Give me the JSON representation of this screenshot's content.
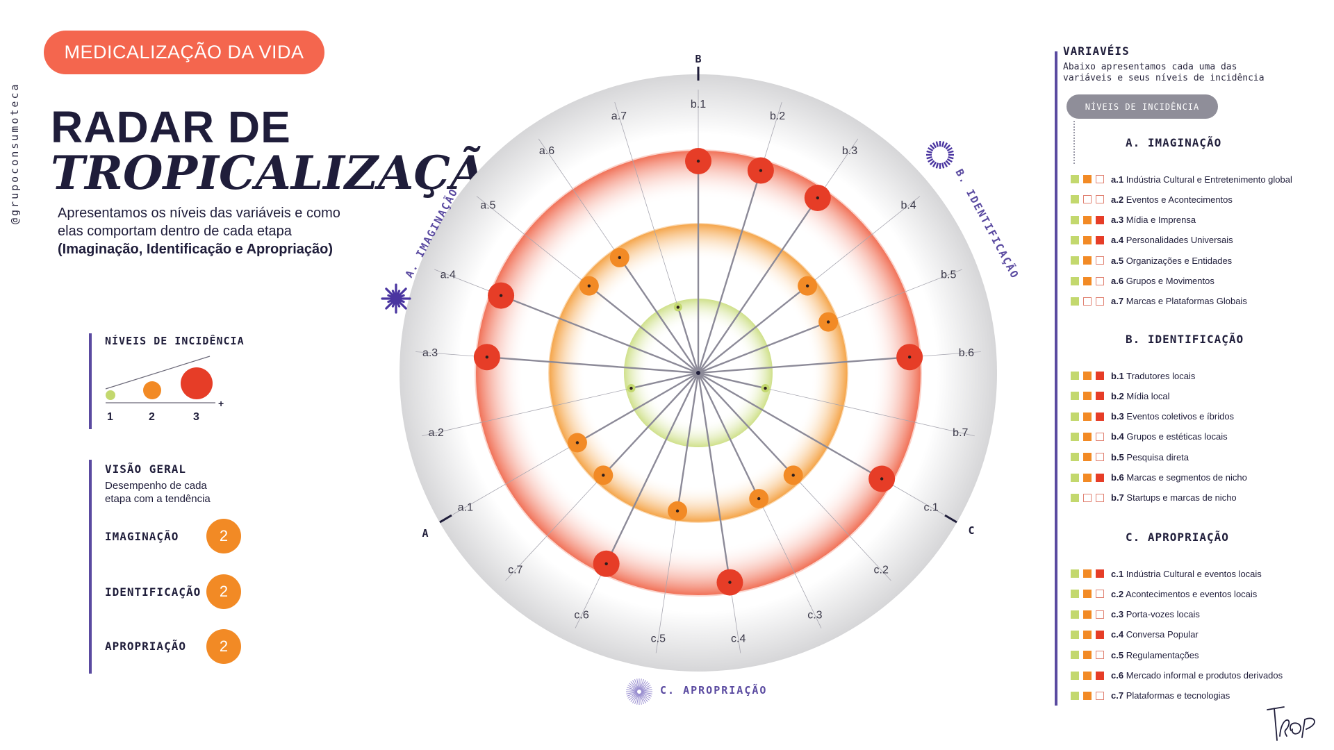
{
  "header": {
    "pill": "MEDICALIZAÇÃO DA VIDA",
    "handle": "@grupoconsumoteca",
    "title_line1": "RADAR DE",
    "title_line2": "TROPICALIZAÇÃO",
    "subtitle_line1": "Apresentamos os níveis das variáveis e como",
    "subtitle_line2": "elas comportam dentro de cada etapa",
    "subtitle_bold": "(Imaginação, Identificação e Apropriação)"
  },
  "levels": {
    "title": "NÍVEIS DE INCIDÊNCIA",
    "labels": [
      "1",
      "2",
      "3"
    ],
    "plus": "+"
  },
  "overview": {
    "title": "VISÃO GERAL",
    "desc_line1": "Desempenho de cada",
    "desc_line2": "etapa com a tendência",
    "items": [
      {
        "label": "IMAGINAÇÃO",
        "value": "2"
      },
      {
        "label": "IDENTIFICAÇÃO",
        "value": "2"
      },
      {
        "label": "APROPRIAÇÃO",
        "value": "2"
      }
    ]
  },
  "chart_data": {
    "type": "radar",
    "title": "",
    "axes_markers": [
      "A",
      "B",
      "C"
    ],
    "sections": [
      {
        "name": "A. IMAGINAÇÃO",
        "color": "#5a4aa0"
      },
      {
        "name": "B. IDENTIFICAÇÃO",
        "color": "#5a4aa0"
      },
      {
        "name": "C. APROPRIAÇÃO",
        "color": "#5a4aa0"
      }
    ],
    "level_colors": {
      "1": "#c3d86e",
      "2": "#f28a25",
      "3": "#e63d27"
    },
    "points": [
      {
        "label": "a.1",
        "level": 2
      },
      {
        "label": "a.2",
        "level": 1
      },
      {
        "label": "a.3",
        "level": 3
      },
      {
        "label": "a.4",
        "level": 3
      },
      {
        "label": "a.5",
        "level": 2
      },
      {
        "label": "a.6",
        "level": 2
      },
      {
        "label": "a.7",
        "level": 1
      },
      {
        "label": "b.1",
        "level": 3
      },
      {
        "label": "b.2",
        "level": 3
      },
      {
        "label": "b.3",
        "level": 3
      },
      {
        "label": "b.4",
        "level": 2
      },
      {
        "label": "b.5",
        "level": 2
      },
      {
        "label": "b.6",
        "level": 3
      },
      {
        "label": "b.7",
        "level": 1
      },
      {
        "label": "c.1",
        "level": 3
      },
      {
        "label": "c.2",
        "level": 2
      },
      {
        "label": "c.3",
        "level": 2
      },
      {
        "label": "c.4",
        "level": 3
      },
      {
        "label": "c.5",
        "level": 2
      },
      {
        "label": "c.6",
        "level": 3
      },
      {
        "label": "c.7",
        "level": 2
      }
    ]
  },
  "variables": {
    "title": "VARIAVÉIS",
    "desc_line1": "Abaixo apresentamos cada uma das",
    "desc_line2": "variáveis e seus níveis de incidência",
    "pill": "NÍVEIS DE INCIDÊNCIA",
    "sections": [
      {
        "title": "A. IMAGINAÇÃO",
        "items": [
          {
            "code": "a.1",
            "name": "Indústria Cultural e Entretenimento global",
            "level": 2
          },
          {
            "code": "a.2",
            "name": "Eventos e Acontecimentos",
            "level": 1
          },
          {
            "code": "a.3",
            "name": "Mídia e Imprensa",
            "level": 3
          },
          {
            "code": "a.4",
            "name": "Personalidades Universais",
            "level": 3
          },
          {
            "code": "a.5",
            "name": "Organizações e Entidades",
            "level": 2
          },
          {
            "code": "a.6",
            "name": "Grupos e Movimentos",
            "level": 2
          },
          {
            "code": "a.7",
            "name": "Marcas e Plataformas Globais",
            "level": 1
          }
        ]
      },
      {
        "title": "B. IDENTIFICAÇÃO",
        "items": [
          {
            "code": "b.1",
            "name": "Tradutores locais",
            "level": 3
          },
          {
            "code": "b.2",
            "name": "Mídia local",
            "level": 3
          },
          {
            "code": "b.3",
            "name": "Eventos coletivos e íbridos",
            "level": 3
          },
          {
            "code": "b.4",
            "name": "Grupos e estéticas locais",
            "level": 2
          },
          {
            "code": "b.5",
            "name": "Pesquisa direta",
            "level": 2
          },
          {
            "code": "b.6",
            "name": "Marcas e segmentos de nicho",
            "level": 3
          },
          {
            "code": "b.7",
            "name": "Startups e marcas de nicho",
            "level": 1
          }
        ]
      },
      {
        "title": "C. APROPRIAÇÃO",
        "items": [
          {
            "code": "c.1",
            "name": "Indústria Cultural e eventos locais",
            "level": 3
          },
          {
            "code": "c.2",
            "name": "Acontecimentos e eventos locais",
            "level": 2
          },
          {
            "code": "c.3",
            "name": "Porta-vozes locais",
            "level": 2
          },
          {
            "code": "c.4",
            "name": "Conversa Popular",
            "level": 3
          },
          {
            "code": "c.5",
            "name": "Regulamentações",
            "level": 2
          },
          {
            "code": "c.6",
            "name": "Mercado informal e produtos derivados",
            "level": 3
          },
          {
            "code": "c.7",
            "name": "Plataformas e tecnologias",
            "level": 2
          }
        ]
      }
    ]
  },
  "logo": "TROP"
}
